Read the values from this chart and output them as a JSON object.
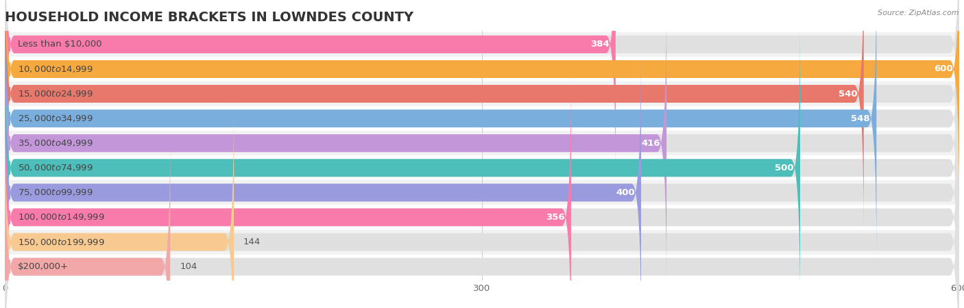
{
  "title": "HOUSEHOLD INCOME BRACKETS IN LOWNDES COUNTY",
  "source": "Source: ZipAtlas.com",
  "categories": [
    "Less than $10,000",
    "$10,000 to $14,999",
    "$15,000 to $24,999",
    "$25,000 to $34,999",
    "$35,000 to $49,999",
    "$50,000 to $74,999",
    "$75,000 to $99,999",
    "$100,000 to $149,999",
    "$150,000 to $199,999",
    "$200,000+"
  ],
  "values": [
    384,
    600,
    540,
    548,
    416,
    500,
    400,
    356,
    144,
    104
  ],
  "bar_colors": [
    "#F97BAB",
    "#F5A93E",
    "#E8786B",
    "#7AAEDD",
    "#C396D9",
    "#4DBEBA",
    "#9A9BDE",
    "#F97BAB",
    "#F8CA92",
    "#F2A8A8"
  ],
  "xlim": [
    0,
    600
  ],
  "xticks": [
    0,
    300,
    600
  ],
  "title_fontsize": 14,
  "label_fontsize": 9.5,
  "value_fontsize": 9.5
}
